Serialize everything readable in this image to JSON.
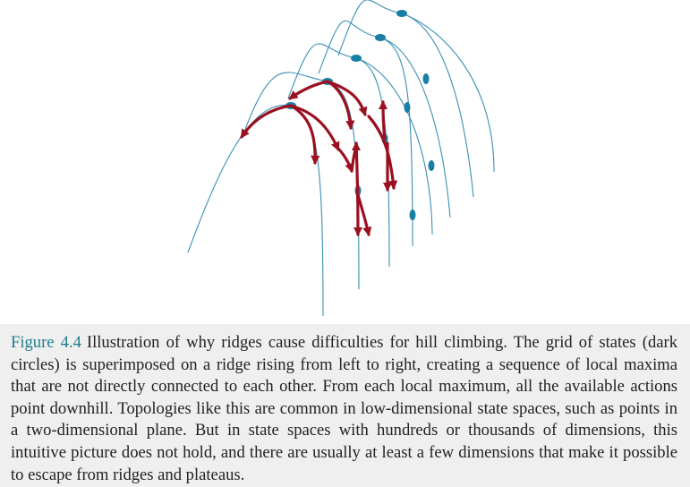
{
  "figure": {
    "label": "Figure 4.4",
    "caption": "Illustration of why ridges cause difficulties for hill climbing. The grid of states (dark circles) is superimposed on a ridge rising from left to right, creating a sequence of local maxima that are not directly connected to each other. From each local maximum, all the available actions point downhill. Topologies like this are common in low-dimensional state spaces, such as points in a two-dimensional plane. But in state spaces with hundreds or thousands of dimensions, this intuitive picture does not hold, and there are usually at least a few dimensions that make it possible to escape from ridges and plateaus."
  },
  "colors": {
    "ridge_line": "#3a8fb5",
    "state_node": "#1a7fa6",
    "action_arrow": "#9b1020",
    "caption_label": "#1e7f8a",
    "caption_background": "#efefef"
  },
  "diagram": {
    "ridges": 5,
    "states_per_column": 5,
    "arrows_from_each_local_maximum": 3
  }
}
